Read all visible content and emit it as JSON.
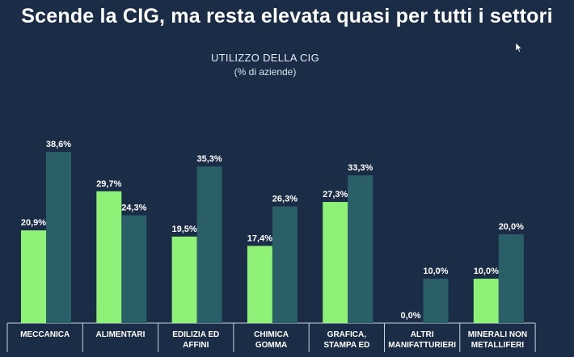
{
  "slide": {
    "title": "Scende la CIG, ma resta elevata quasi per tutti i settori"
  },
  "chart_data": {
    "type": "bar",
    "title": "UTILIZZO DELLA CIG",
    "subtitle": "(% di aziende)",
    "categories": [
      [
        "MECCANICA"
      ],
      [
        "ALIMENTARI"
      ],
      [
        "EDILIZIA ED",
        "AFFINI"
      ],
      [
        "CHIMICA",
        "GOMMA"
      ],
      [
        "GRAFICA,",
        "STAMPA ED"
      ],
      [
        "ALTRI",
        "MANIFATTURIERI"
      ],
      [
        "MINERALI NON",
        "METALLIFERI"
      ]
    ],
    "series": [
      {
        "values": [
          20.9,
          29.7,
          19.5,
          17.4,
          27.3,
          0.0,
          10.0
        ],
        "labels": [
          "20,9%",
          "29,7%",
          "19,5%",
          "17,4%",
          "27,3%",
          "0,0%",
          "10,0%"
        ],
        "color": "#8df277"
      },
      {
        "values": [
          38.6,
          24.3,
          35.3,
          26.3,
          33.3,
          10.0,
          20.0
        ],
        "labels": [
          "38,6%",
          "24,3%",
          "35,3%",
          "26,3%",
          "33,3%",
          "10,0%",
          "20,0%"
        ],
        "color": "#2a5f67"
      }
    ],
    "ylim": [
      0,
      40
    ],
    "grid": false,
    "legend": "none"
  }
}
